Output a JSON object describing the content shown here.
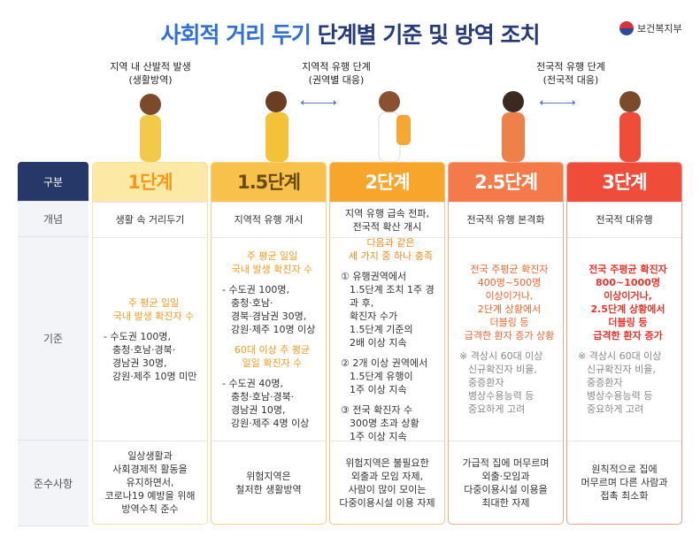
{
  "header": {
    "title_highlight": "사회적 거리 두기",
    "title_rest": "단계별 기준 및 방역 조치",
    "logo": "보건복지부"
  },
  "phases": [
    {
      "label": "지역 내 산발적 발생",
      "sub": "(생활방역)"
    },
    {
      "label": "지역적 유행 단계",
      "sub": "(권역별 대응)"
    },
    {
      "label": "전국적 유행 단계",
      "sub": "(전국적 대응)"
    }
  ],
  "table": {
    "row_labels": [
      "구분",
      "개념",
      "기준",
      "준수사항"
    ],
    "columns": [
      {
        "stage": "1단계",
        "concept": [
          "생활 속 거리두기"
        ],
        "criteria": [
          {
            "kind": "emphasis",
            "lines": [
              "주 평균 일일",
              "국내 발생 확진자 수"
            ]
          },
          {
            "kind": "list",
            "lines": [
              "- 수도권 100명,",
              "충청·호남·경북·",
              "경남권 30명,",
              "강원·제주 10명 미만"
            ]
          }
        ],
        "compliance": [
          "일상생활과",
          "사회경제적 활동을",
          "유지하면서,",
          "코로나19 예방을 위해",
          "방역수칙 준수"
        ]
      },
      {
        "stage": "1.5단계",
        "concept": [
          "지역적 유행 개시"
        ],
        "criteria": [
          {
            "kind": "emphasis",
            "lines": [
              "주 평균 일일",
              "국내 발생 확진자 수"
            ]
          },
          {
            "kind": "list",
            "lines": [
              "- 수도권 100명,",
              "충청·호남·",
              "경북·경남권 30명,",
              "강원·제주 10명 이상"
            ]
          },
          {
            "kind": "emphasis",
            "lines": [
              "60대 이상 주 평균",
              "일일 확진자 수"
            ]
          },
          {
            "kind": "list",
            "lines": [
              "- 수도권 40명,",
              "충청·호남·경북·",
              "경남권 10명,",
              "강원·제주 4명 이상"
            ]
          }
        ],
        "compliance": [
          "위험지역은",
          "철저한 생활방역"
        ]
      },
      {
        "stage": "2단계",
        "concept": [
          "지역 유행 급속 전파,",
          "전국적 확산 개시"
        ],
        "criteria": [
          {
            "kind": "emphasis",
            "lines": [
              "다음과 같은",
              "세 가지 중 하나 충족"
            ]
          },
          {
            "kind": "list",
            "lines": [
              "① 유행권역에서",
              "1.5단계 조치 1주 경과 후,",
              "확진자 수가",
              "1.5단계 기준의",
              "2배 이상 지속"
            ]
          },
          {
            "kind": "list",
            "lines": [
              "② 2개 이상 권역에서",
              "1.5단계 유행이",
              "1주 이상 지속"
            ]
          },
          {
            "kind": "list",
            "lines": [
              "③ 전국 확진자 수",
              "300명 초과 상황",
              "1주 이상 지속"
            ]
          }
        ],
        "compliance": [
          "위험지역은 불필요한",
          "외출과 모임 자제,",
          "사람이 많이 모이는",
          "다중이용시설 이용 자제"
        ]
      },
      {
        "stage": "2.5단계",
        "concept": [
          "전국적 유행 본격화"
        ],
        "criteria": [
          {
            "kind": "emphasis",
            "lines": [
              "전국 주평균 확진자",
              "400명~500명",
              "이상이거나,",
              "2단계 상황에서",
              "더블링 등",
              "급격한 환자 증가 상황"
            ]
          },
          {
            "kind": "note",
            "lines": [
              "※ 격상시 60대 이상",
              "신규확진자 비율,",
              "중증환자",
              "병상수용능력 등",
              "중요하게 고려"
            ]
          }
        ],
        "compliance": [
          "가급적 집에 머무르며",
          "외출·모임과",
          "다중이용시설 이용을",
          "최대한 자제"
        ]
      },
      {
        "stage": "3단계",
        "concept": [
          "전국적 대유행"
        ],
        "criteria": [
          {
            "kind": "emphasis",
            "lines": [
              "전국 주평균 확진자",
              "800~1000명",
              "이상이거나,",
              "2.5단계 상황에서",
              "더블링 등",
              "급격한 환자 증가"
            ]
          },
          {
            "kind": "note",
            "lines": [
              "※ 격상시 60대 이상",
              "신규확진자 비율,",
              "중증환자",
              "병상수용능력 등",
              "중요하게 고려"
            ]
          }
        ],
        "compliance": [
          "원칙적으로 집에",
          "머무르며 다른 사람과",
          "접촉 최소화"
        ]
      }
    ]
  }
}
